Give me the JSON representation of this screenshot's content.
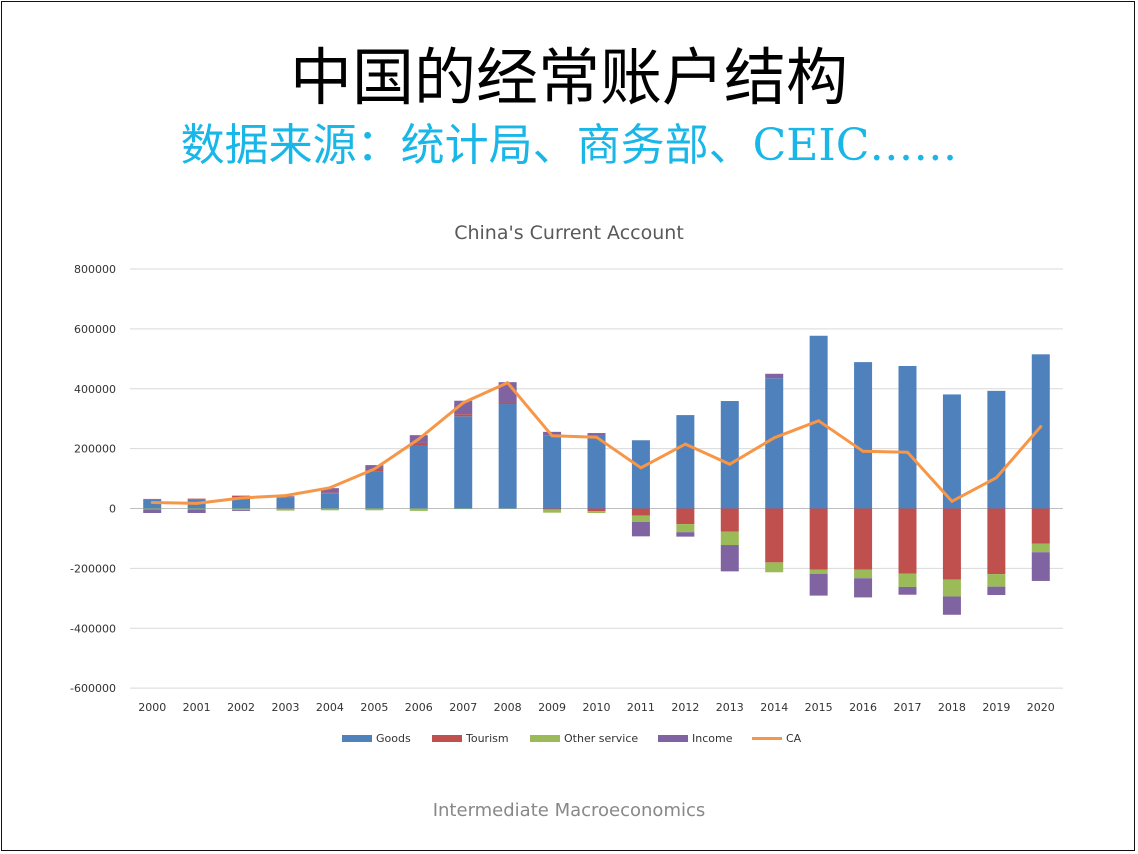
{
  "slide": {
    "title": "中国的经常账户结构",
    "subtitle": "数据来源：统计局、商务部、CEIC……",
    "footer": "Intermediate Macroeconomics"
  },
  "colors": {
    "Goods": "#4f81bd",
    "Tourism": "#c0504d",
    "Other service": "#9bbb59",
    "Income": "#8064a2",
    "CA": "#f79646",
    "subtitle": "#19b6e8"
  },
  "chart_data": {
    "type": "bar",
    "stacked": true,
    "title": "China's Current Account",
    "xlabel": "",
    "ylabel": "",
    "ylim": [
      -600000,
      800000
    ],
    "yticks": [
      800000,
      600000,
      400000,
      200000,
      0,
      -200000,
      -400000,
      -600000
    ],
    "ytick_labels": [
      "800000",
      "600000",
      "400000",
      "200000",
      "0",
      "-200000",
      "-400000",
      "-600000"
    ],
    "grid": true,
    "legend_position": "bottom",
    "categories": [
      "2000",
      "2001",
      "2002",
      "2003",
      "2004",
      "2005",
      "2006",
      "2007",
      "2008",
      "2009",
      "2010",
      "2011",
      "2012",
      "2013",
      "2014",
      "2015",
      "2016",
      "2017",
      "2018",
      "2019",
      "2020"
    ],
    "series": [
      {
        "name": "Goods",
        "kind": "bar",
        "values": [
          29000,
          29000,
          38000,
          36000,
          51000,
          124000,
          209000,
          308000,
          349000,
          243000,
          244000,
          228000,
          312000,
          359000,
          435000,
          577000,
          489000,
          476000,
          381000,
          393000,
          515000
        ]
      },
      {
        "name": "Tourism",
        "kind": "bar",
        "values": [
          3000,
          4000,
          5000,
          -1000,
          2000,
          8000,
          10000,
          7000,
          5000,
          -3000,
          -9000,
          -24000,
          -52000,
          -77000,
          -180000,
          -204000,
          -204000,
          -218000,
          -237000,
          -219000,
          -117000
        ]
      },
      {
        "name": "Other service",
        "kind": "bar",
        "values": [
          -3000,
          -3000,
          -5000,
          -6000,
          -6000,
          -6000,
          -8000,
          -2000,
          -1000,
          -11000,
          -6000,
          -21000,
          -27000,
          -45000,
          -33000,
          -14000,
          -29000,
          -44000,
          -57000,
          -42000,
          -29000
        ]
      },
      {
        "name": "Income",
        "kind": "bar",
        "values": [
          -12000,
          -12000,
          -3000,
          5000,
          15000,
          13000,
          26000,
          45000,
          68000,
          13000,
          8000,
          -48000,
          -15000,
          -88000,
          15000,
          -73000,
          -64000,
          -26000,
          -61000,
          -28000,
          -96000
        ]
      },
      {
        "name": "CA",
        "kind": "line",
        "values": [
          20000,
          17000,
          35000,
          43000,
          69000,
          132000,
          232000,
          353000,
          420000,
          243000,
          238000,
          136000,
          215000,
          148000,
          236000,
          293000,
          191000,
          188000,
          24000,
          103000,
          274000
        ]
      }
    ]
  }
}
